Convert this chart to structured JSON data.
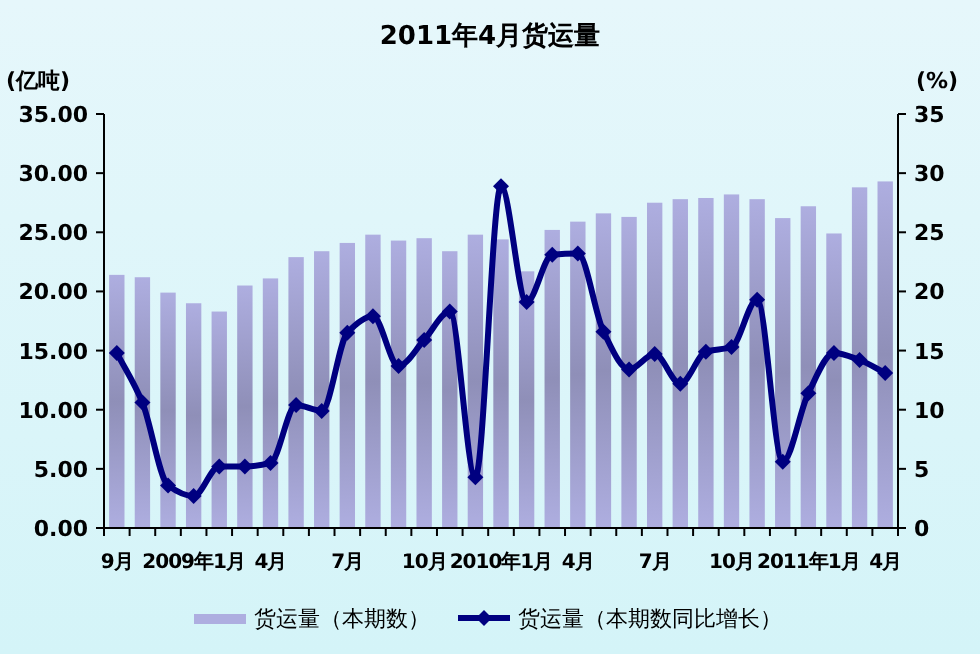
{
  "chart_data": {
    "type": "bar",
    "title": "2011年4月货运量",
    "ylabel": "(亿吨)",
    "y2label": "(%)",
    "categories": [
      "9月",
      null,
      null,
      "2009年1月",
      null,
      null,
      "4月",
      null,
      null,
      "7月",
      null,
      null,
      "10月",
      null,
      null,
      "2010年1月",
      null,
      null,
      "4月",
      null,
      null,
      "7月",
      null,
      null,
      "10月",
      null,
      null,
      "2011年1月",
      null,
      null,
      "4月"
    ],
    "series": [
      {
        "name": "货运量（本期数）",
        "color": "#aeaee0",
        "values": [
          21.4,
          21.2,
          19.9,
          19.0,
          18.3,
          20.5,
          21.1,
          22.9,
          23.4,
          24.1,
          24.8,
          24.3,
          24.5,
          23.4,
          24.8,
          24.4,
          21.7,
          25.2,
          25.9,
          26.6,
          26.3,
          27.5,
          27.8,
          27.9,
          28.2,
          27.8,
          26.2,
          27.2,
          24.9,
          28.8,
          29.3
        ]
      },
      {
        "name": "货运量（本期数同比增长）",
        "type": "line",
        "axis": "y2",
        "color": "#000080",
        "marker": "diamond",
        "values": [
          14.8,
          10.6,
          3.6,
          2.7,
          5.2,
          5.2,
          5.5,
          10.4,
          9.9,
          16.5,
          17.9,
          13.7,
          15.9,
          18.3,
          4.3,
          28.9,
          19.1,
          23.1,
          23.2,
          16.6,
          13.4,
          14.7,
          12.2,
          14.9,
          15.3,
          19.3,
          5.6,
          11.4,
          14.8,
          14.2,
          13.1
        ]
      }
    ],
    "ylim": [
      0,
      35
    ],
    "yticks": [
      {
        "value": 0,
        "label": "0.00"
      },
      {
        "value": 5,
        "label": "5.00"
      },
      {
        "value": 10,
        "label": "10.00"
      },
      {
        "value": 15,
        "label": "15.00"
      },
      {
        "value": 20,
        "label": "20.00"
      },
      {
        "value": 25,
        "label": "25.00"
      },
      {
        "value": 30,
        "label": "30.00"
      },
      {
        "value": 35,
        "label": "35.00"
      }
    ],
    "y2lim": [
      0,
      35
    ],
    "y2ticks": [
      0,
      5,
      10,
      15,
      20,
      25,
      30,
      35
    ],
    "legend": "bottom",
    "grid": false
  }
}
